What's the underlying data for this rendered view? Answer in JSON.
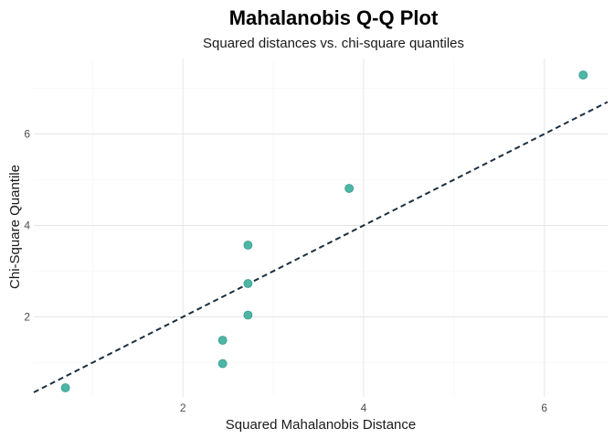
{
  "chart_data": {
    "type": "scatter",
    "title": "Mahalanobis Q-Q Plot",
    "subtitle": "Squared distances vs. chi-square quantiles",
    "xlabel": "Squared Mahalanobis Distance",
    "ylabel": "Chi-Square Quantile",
    "xlim": [
      0.35,
      6.7
    ],
    "ylim": [
      0.25,
      7.65
    ],
    "x_ticks": [
      2,
      4,
      6
    ],
    "y_ticks": [
      2,
      4,
      6
    ],
    "grid": true,
    "points": [
      {
        "x": 0.7,
        "y": 0.45
      },
      {
        "x": 2.44,
        "y": 0.98
      },
      {
        "x": 2.44,
        "y": 1.49
      },
      {
        "x": 2.72,
        "y": 2.04
      },
      {
        "x": 2.72,
        "y": 2.73
      },
      {
        "x": 2.72,
        "y": 3.57
      },
      {
        "x": 3.84,
        "y": 4.81
      },
      {
        "x": 6.43,
        "y": 7.29
      }
    ],
    "reference_line": {
      "intercept": 0.0,
      "slope": 1.0,
      "style": "dashed"
    },
    "colors": {
      "point": "#4db6a6",
      "point_stroke": "#3a9c8e",
      "line": "#1b2f40"
    }
  }
}
